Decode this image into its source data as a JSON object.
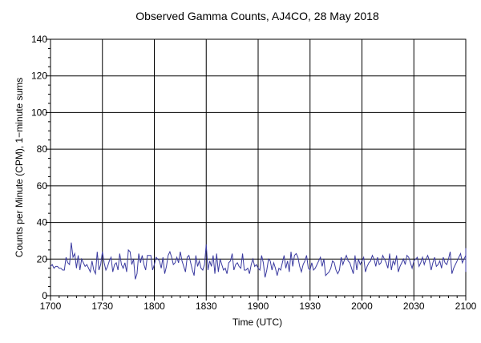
{
  "chart_data": {
    "type": "line",
    "title": "Observed Gamma Counts, AJ4CO, 28 May 2018",
    "xlabel": "Time (UTC)",
    "ylabel": "Counts per Minute (CPM), 1−minute sums",
    "x_tick_labels": [
      "1700",
      "1730",
      "1800",
      "1830",
      "1900",
      "1930",
      "2000",
      "2030",
      "2100"
    ],
    "y_tick_labels": [
      "0",
      "20",
      "40",
      "60",
      "80",
      "100",
      "120",
      "140"
    ],
    "xlim": [
      "17:00",
      "21:00"
    ],
    "ylim": [
      0,
      140
    ],
    "x_major_step_minutes": 30,
    "y_major_step": 20,
    "grid": true,
    "legend": "none",
    "series": [
      {
        "color": "#3a3aa0",
        "x_start": "17:00",
        "x_step_minutes": 1,
        "values": [
          16,
          17,
          15,
          16,
          16,
          15,
          15,
          14,
          14,
          21,
          18,
          17,
          29,
          21,
          23,
          15,
          22,
          14,
          20,
          18,
          16,
          17,
          15,
          13,
          19,
          14,
          12,
          24,
          14,
          17,
          24,
          18,
          14,
          16,
          19,
          21,
          13,
          17,
          18,
          14,
          23,
          17,
          15,
          18,
          13,
          25,
          24,
          17,
          20,
          9,
          12,
          23,
          18,
          22,
          17,
          14,
          22,
          22,
          22,
          14,
          17,
          21,
          20,
          19,
          15,
          21,
          12,
          16,
          22,
          24,
          21,
          17,
          18,
          21,
          18,
          24,
          19,
          16,
          13,
          21,
          22,
          18,
          14,
          11,
          22,
          16,
          19,
          15,
          14,
          17,
          28,
          14,
          19,
          16,
          22,
          12,
          23,
          13,
          20,
          17,
          14,
          15,
          12,
          18,
          19,
          23,
          14,
          17,
          18,
          16,
          15,
          23,
          14,
          14,
          15,
          12,
          17,
          20,
          16,
          17,
          15,
          14,
          22,
          18,
          10,
          14,
          20,
          19,
          14,
          18,
          15,
          11,
          15,
          14,
          18,
          22,
          15,
          19,
          13,
          24,
          16,
          22,
          23,
          21,
          16,
          13,
          17,
          19,
          22,
          15,
          14,
          18,
          14,
          15,
          17,
          19,
          21,
          16,
          20,
          11,
          12,
          13,
          15,
          19,
          18,
          14,
          12,
          14,
          21,
          17,
          20,
          22,
          19,
          18,
          15,
          12,
          22,
          14,
          20,
          17,
          19,
          21,
          13,
          16,
          18,
          19,
          22,
          20,
          16,
          21,
          17,
          18,
          22,
          20,
          18,
          15,
          23,
          14,
          19,
          17,
          22,
          13,
          16,
          18,
          20,
          17,
          22,
          21,
          18,
          15,
          19,
          20,
          21,
          16,
          18,
          21,
          17,
          20,
          22,
          19,
          14,
          18,
          21,
          16,
          17,
          19,
          15,
          21,
          18,
          17,
          20,
          24,
          12,
          15,
          17,
          19,
          21,
          23,
          18,
          20,
          22,
          16,
          19,
          17,
          26,
          13,
          21,
          18,
          15,
          22,
          20,
          14,
          19,
          18,
          21,
          25,
          23,
          22,
          20,
          26,
          19
        ]
      }
    ]
  }
}
